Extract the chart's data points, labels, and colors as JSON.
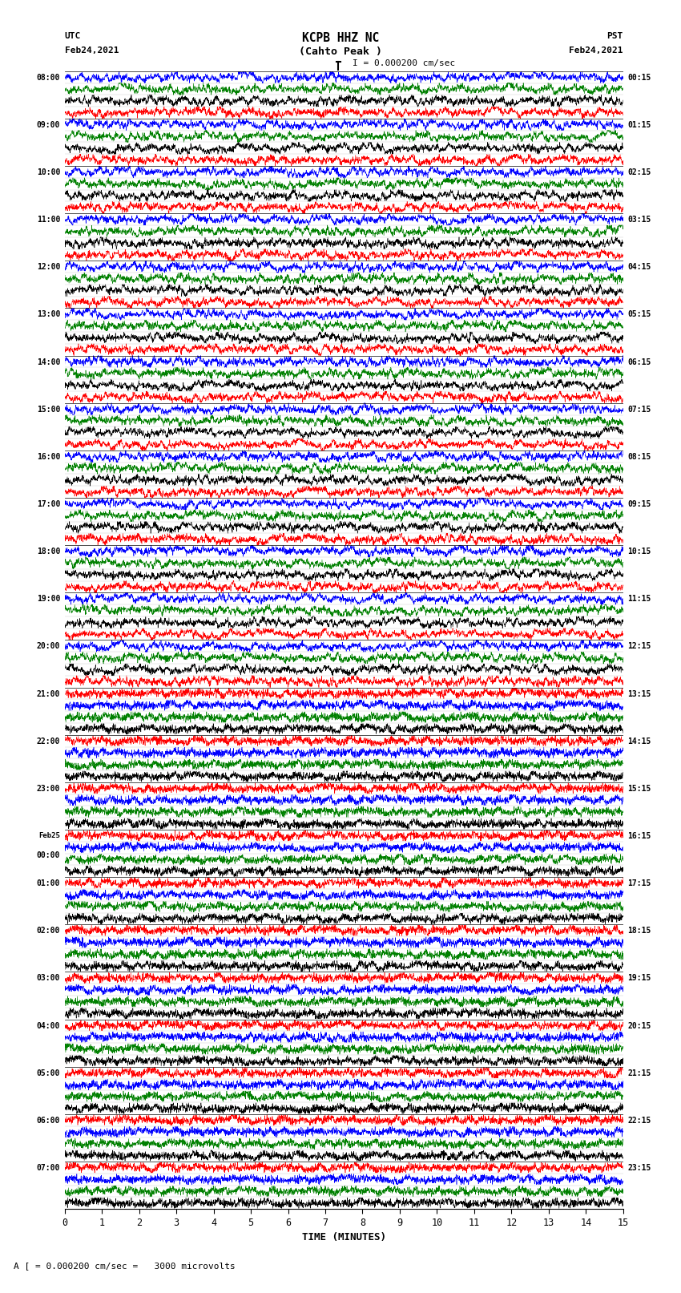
{
  "title_line1": "KCPB HHZ NC",
  "title_line2": "(Cahto Peak )",
  "scale_label": "I = 0.000200 cm/sec",
  "left_header_line1": "UTC",
  "left_header_line2": "Feb24,2021",
  "right_header_line1": "PST",
  "right_header_line2": "Feb24,2021",
  "bottom_label": "TIME (MINUTES)",
  "footer_text": "A [ = 0.000200 cm/sec =   3000 microvolts",
  "utc_times": [
    "08:00",
    "09:00",
    "10:00",
    "11:00",
    "12:00",
    "13:00",
    "14:00",
    "15:00",
    "16:00",
    "17:00",
    "18:00",
    "19:00",
    "20:00",
    "21:00",
    "22:00",
    "23:00",
    "Feb25\n00:00",
    "01:00",
    "02:00",
    "03:00",
    "04:00",
    "05:00",
    "06:00",
    "07:00"
  ],
  "pst_times": [
    "00:15",
    "01:15",
    "02:15",
    "03:15",
    "04:15",
    "05:15",
    "06:15",
    "07:15",
    "08:15",
    "09:15",
    "10:15",
    "11:15",
    "12:15",
    "13:15",
    "14:15",
    "15:15",
    "16:15",
    "17:15",
    "18:15",
    "19:15",
    "20:15",
    "21:15",
    "22:15",
    "23:15"
  ],
  "n_rows": 24,
  "n_points": 3000,
  "time_max": 15,
  "bg_color": "white",
  "sub_colors_high": [
    "blue",
    "green",
    "black",
    "red"
  ],
  "sub_colors_low": [
    "red",
    "blue",
    "green",
    "black"
  ],
  "transition_row": 13,
  "figsize": [
    8.5,
    16.13
  ],
  "dpi": 100
}
